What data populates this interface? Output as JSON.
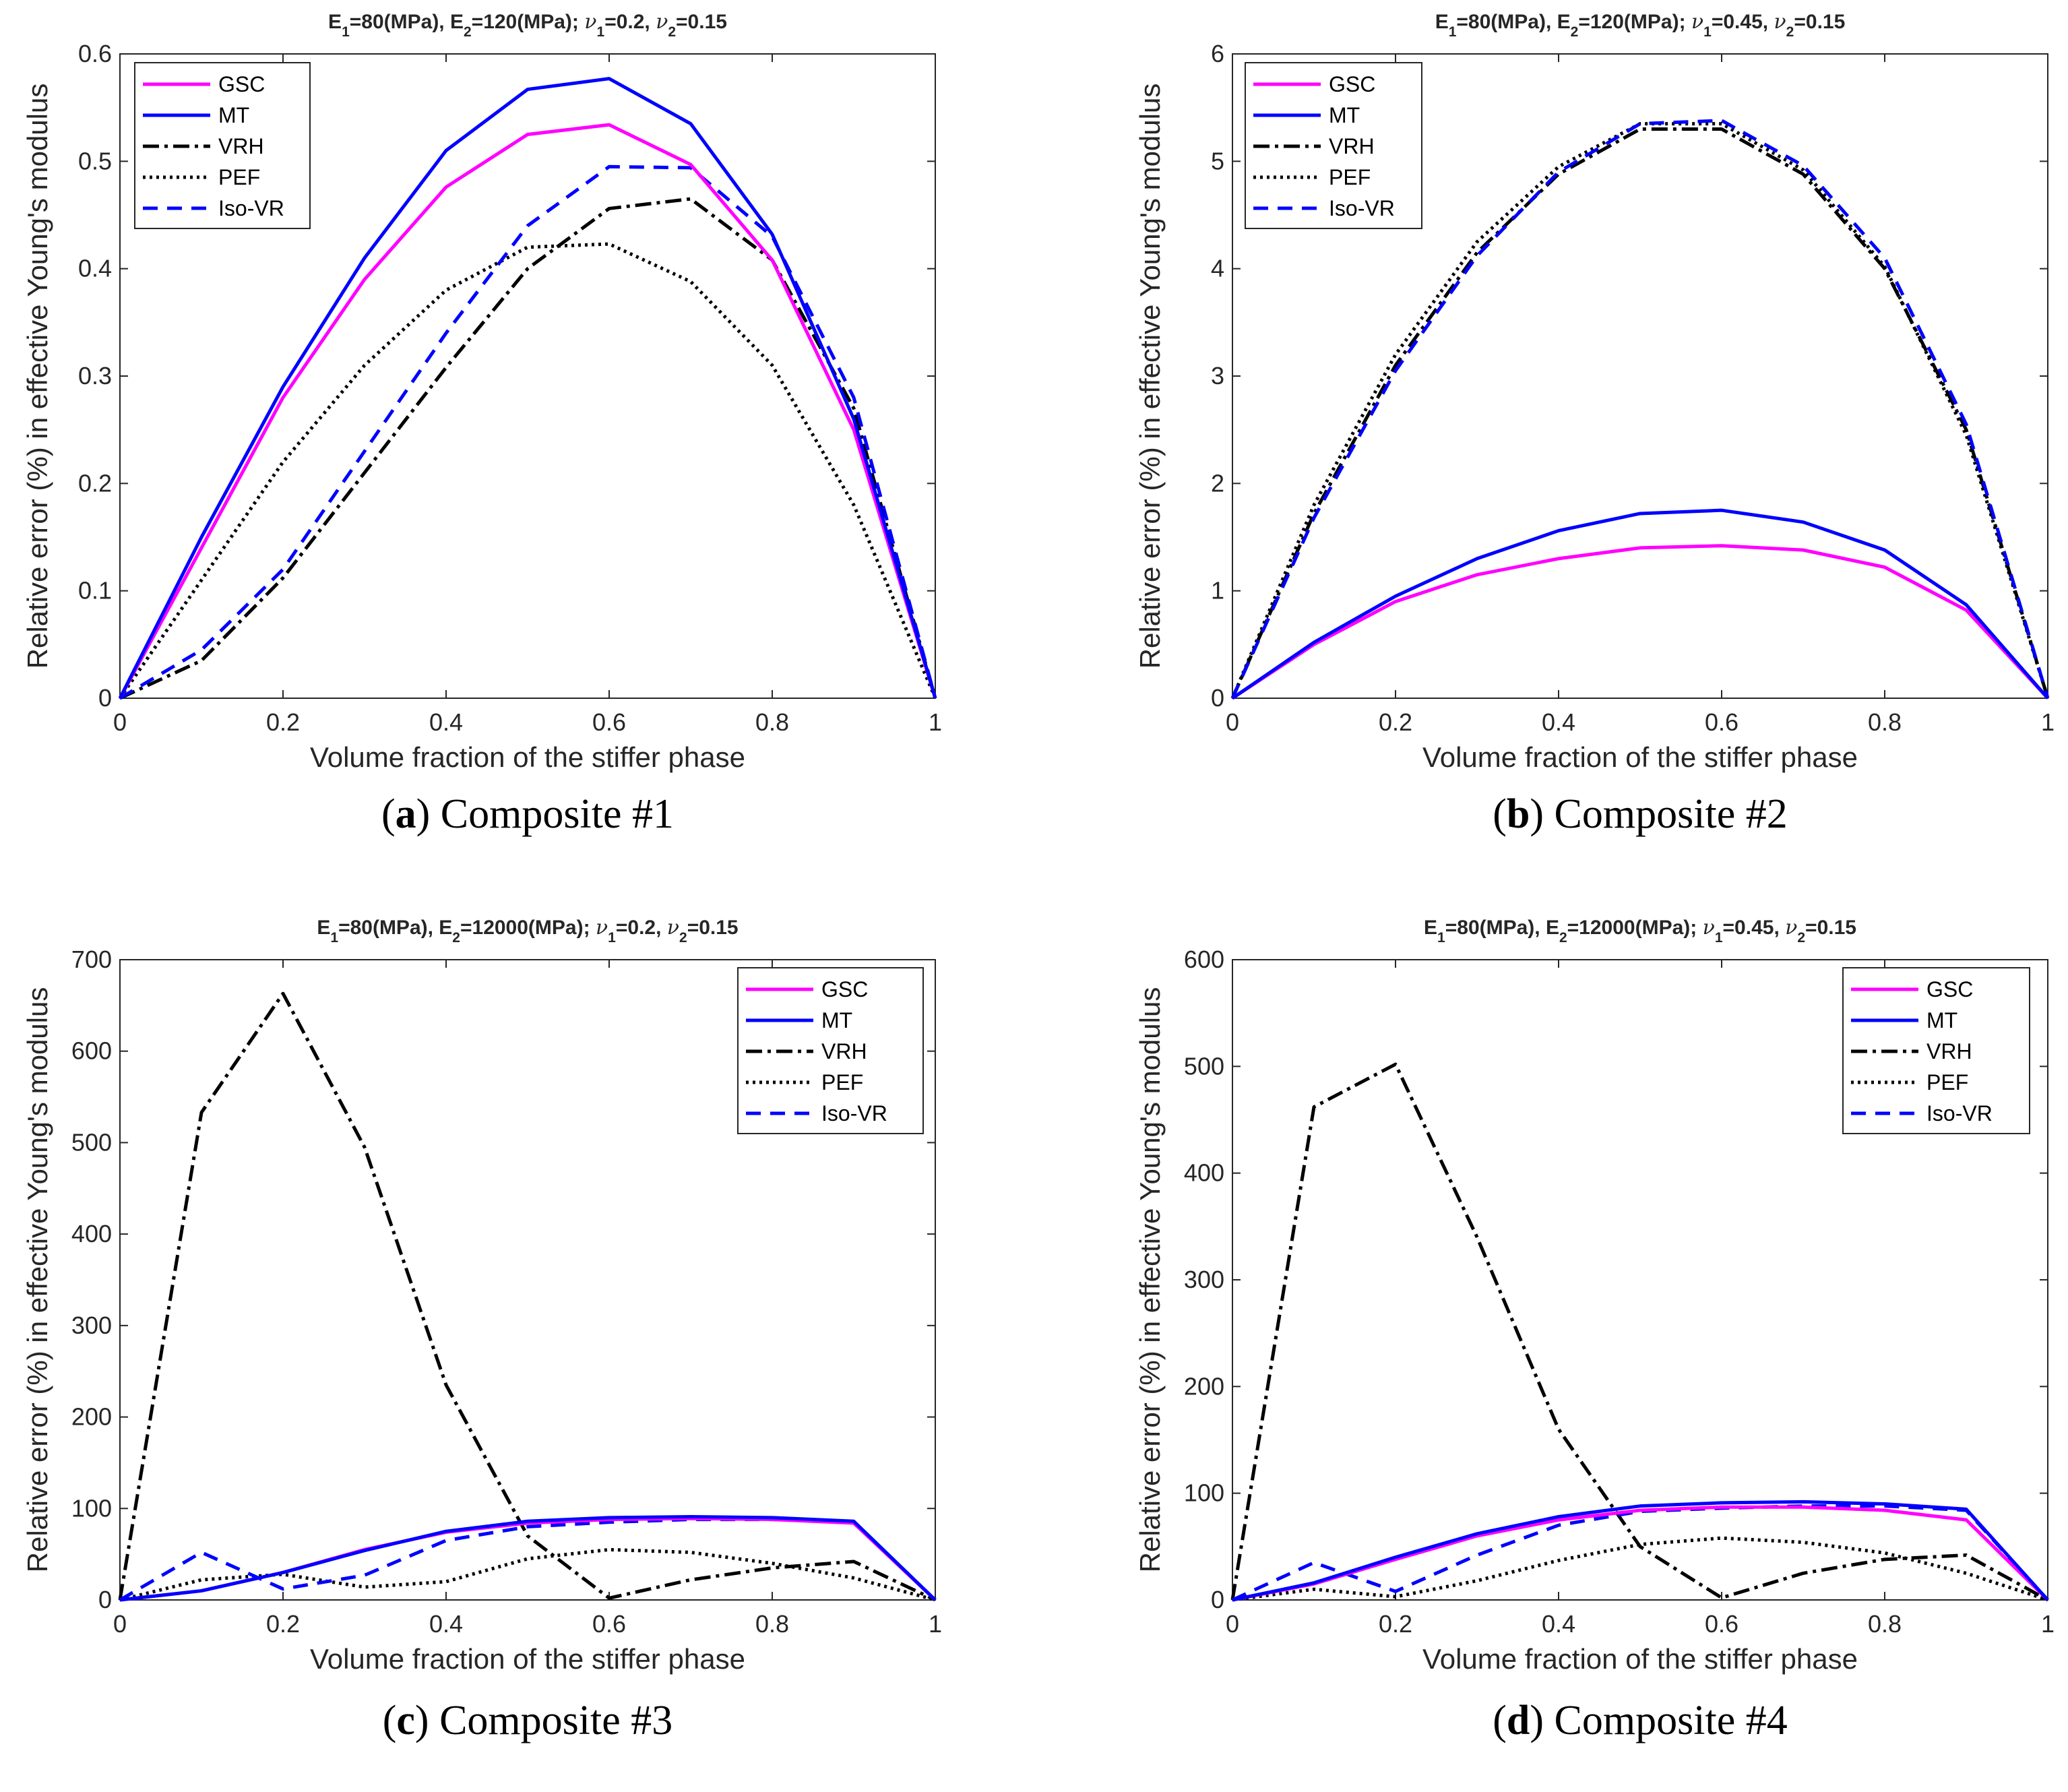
{
  "chart_data": [
    {
      "type": "line",
      "id": "a",
      "title": "E1=80(MPa), E2=120(MPa); ν1=0.2, ν2=0.15",
      "title_parts": {
        "e1_sub": "1",
        "e1_val": "=80(MPa), E",
        "e2_sub": "2",
        "e2_val": "=120(MPa); ",
        "nu1_sub": "1",
        "nu1_val": "=0.2, ",
        "nu2_sub": "2",
        "nu2_val": "=0.15"
      },
      "xlabel": "Volume fraction of the stiffer phase",
      "ylabel": "Relative error (%) in effective Young's modulus",
      "xlim": [
        0,
        1
      ],
      "ylim": [
        0,
        0.6
      ],
      "x": [
        0,
        0.1,
        0.2,
        0.3,
        0.4,
        0.5,
        0.6,
        0.7,
        0.8,
        0.9,
        1
      ],
      "xticks": [
        "0",
        "0.2",
        "0.4",
        "0.6",
        "0.8",
        "1"
      ],
      "xtick_values": [
        0,
        0.2,
        0.4,
        0.6,
        0.8,
        1
      ],
      "yticks": [
        "0",
        "0.1",
        "0.2",
        "0.3",
        "0.4",
        "0.5",
        "0.6"
      ],
      "ytick_values": [
        0,
        0.1,
        0.2,
        0.3,
        0.4,
        0.5,
        0.6
      ],
      "legend_position": "top-left",
      "caption": {
        "letter": "a",
        "text": " Composite #1"
      },
      "series": [
        {
          "name": "GSC",
          "values": [
            0,
            0.14,
            0.28,
            0.39,
            0.476,
            0.525,
            0.534,
            0.497,
            0.408,
            0.25,
            0
          ]
        },
        {
          "name": "MT",
          "values": [
            0,
            0.15,
            0.29,
            0.41,
            0.51,
            0.567,
            0.577,
            0.535,
            0.432,
            0.26,
            0
          ]
        },
        {
          "name": "VRH",
          "values": [
            0,
            0.035,
            0.112,
            0.21,
            0.308,
            0.4,
            0.456,
            0.465,
            0.408,
            0.27,
            0
          ]
        },
        {
          "name": "PEF",
          "values": [
            0,
            0.11,
            0.22,
            0.31,
            0.38,
            0.42,
            0.423,
            0.388,
            0.31,
            0.18,
            0
          ]
        },
        {
          "name": "Iso-VR",
          "values": [
            0,
            0.045,
            0.12,
            0.23,
            0.34,
            0.44,
            0.495,
            0.494,
            0.43,
            0.28,
            0
          ]
        }
      ]
    },
    {
      "type": "line",
      "id": "b",
      "title": "E1=80(MPa), E2=120(MPa); ν1=0.45, ν2=0.15",
      "title_parts": {
        "e1_sub": "1",
        "e1_val": "=80(MPa), E",
        "e2_sub": "2",
        "e2_val": "=120(MPa); ",
        "nu1_sub": "1",
        "nu1_val": "=0.45, ",
        "nu2_sub": "2",
        "nu2_val": "=0.15"
      },
      "xlabel": "Volume fraction of the stiffer phase",
      "ylabel": "Relative error (%) in effective Young's modulus",
      "xlim": [
        0,
        1
      ],
      "ylim": [
        0,
        6
      ],
      "x": [
        0,
        0.1,
        0.2,
        0.3,
        0.4,
        0.5,
        0.6,
        0.7,
        0.8,
        0.9,
        1
      ],
      "xticks": [
        "0",
        "0.2",
        "0.4",
        "0.6",
        "0.8",
        "1"
      ],
      "xtick_values": [
        0,
        0.2,
        0.4,
        0.6,
        0.8,
        1
      ],
      "yticks": [
        "0",
        "1",
        "2",
        "3",
        "4",
        "5",
        "6"
      ],
      "ytick_values": [
        0,
        1,
        2,
        3,
        4,
        5,
        6
      ],
      "legend_position": "top-left",
      "caption": {
        "letter": "b",
        "text": " Composite #2"
      },
      "series": [
        {
          "name": "GSC",
          "values": [
            0,
            0.5,
            0.9,
            1.15,
            1.3,
            1.4,
            1.42,
            1.38,
            1.22,
            0.82,
            0
          ]
        },
        {
          "name": "MT",
          "values": [
            0,
            0.52,
            0.95,
            1.3,
            1.56,
            1.72,
            1.75,
            1.64,
            1.38,
            0.87,
            0
          ]
        },
        {
          "name": "VRH",
          "values": [
            0,
            1.72,
            3.1,
            4.15,
            4.88,
            5.3,
            5.3,
            4.88,
            4.0,
            2.5,
            0
          ]
        },
        {
          "name": "PEF",
          "values": [
            0,
            1.8,
            3.2,
            4.25,
            4.95,
            5.35,
            5.35,
            4.92,
            4.02,
            2.45,
            0
          ]
        },
        {
          "name": "Iso-VR",
          "values": [
            0,
            1.68,
            3.05,
            4.12,
            4.9,
            5.35,
            5.38,
            4.96,
            4.1,
            2.55,
            0
          ]
        }
      ]
    },
    {
      "type": "line",
      "id": "c",
      "title": "E1=80(MPa), E2=12000(MPa); ν1=0.2, ν2=0.15",
      "title_parts": {
        "e1_sub": "1",
        "e1_val": "=80(MPa), E",
        "e2_sub": "2",
        "e2_val": "=12000(MPa); ",
        "nu1_sub": "1",
        "nu1_val": "=0.2, ",
        "nu2_sub": "2",
        "nu2_val": "=0.15"
      },
      "xlabel": "Volume fraction of the stiffer phase",
      "ylabel": "Relative error (%) in effective Young's modulus",
      "xlim": [
        0,
        1
      ],
      "ylim": [
        0,
        700
      ],
      "x": [
        0,
        0.1,
        0.2,
        0.3,
        0.4,
        0.5,
        0.6,
        0.7,
        0.8,
        0.9,
        1
      ],
      "xticks": [
        "0",
        "0.2",
        "0.4",
        "0.6",
        "0.8",
        "1"
      ],
      "xtick_values": [
        0,
        0.2,
        0.4,
        0.6,
        0.8,
        1
      ],
      "yticks": [
        "0",
        "100",
        "200",
        "300",
        "400",
        "500",
        "600",
        "700"
      ],
      "ytick_values": [
        0,
        100,
        200,
        300,
        400,
        500,
        600,
        700
      ],
      "legend_position": "top-right",
      "caption": {
        "letter": "c",
        "text": " Composite #3"
      },
      "series": [
        {
          "name": "GSC",
          "values": [
            0,
            10,
            30,
            55,
            74,
            84,
            88,
            89,
            88,
            84,
            0
          ]
        },
        {
          "name": "MT",
          "values": [
            0,
            10,
            30,
            54,
            75,
            86,
            90,
            91,
            90,
            86,
            0
          ]
        },
        {
          "name": "VRH",
          "values": [
            0,
            533,
            663,
            495,
            235,
            70,
            2,
            22,
            35,
            42,
            0
          ]
        },
        {
          "name": "PEF",
          "values": [
            0,
            22,
            28,
            14,
            20,
            45,
            55,
            52,
            40,
            24,
            0
          ]
        },
        {
          "name": "Iso-VR",
          "values": [
            0,
            52,
            12,
            27,
            65,
            80,
            85,
            88,
            88,
            85,
            0
          ]
        }
      ]
    },
    {
      "type": "line",
      "id": "d",
      "title": "E1=80(MPa), E2=12000(MPa); ν1=0.45, ν2=0.15",
      "title_parts": {
        "e1_sub": "1",
        "e1_val": "=80(MPa), E",
        "e2_sub": "2",
        "e2_val": "=12000(MPa); ",
        "nu1_sub": "1",
        "nu1_val": "=0.45, ",
        "nu2_sub": "2",
        "nu2_val": "=0.15"
      },
      "xlabel": "Volume fraction of the stiffer phase",
      "ylabel": "Relative error (%) in effective Young's modulus",
      "xlim": [
        0,
        1
      ],
      "ylim": [
        0,
        600
      ],
      "x": [
        0,
        0.1,
        0.2,
        0.3,
        0.4,
        0.5,
        0.6,
        0.7,
        0.8,
        0.9,
        1
      ],
      "xticks": [
        "0",
        "0.2",
        "0.4",
        "0.6",
        "0.8",
        "1"
      ],
      "xtick_values": [
        0,
        0.2,
        0.4,
        0.6,
        0.8,
        1
      ],
      "yticks": [
        "0",
        "100",
        "200",
        "300",
        "400",
        "500",
        "600"
      ],
      "ytick_values": [
        0,
        100,
        200,
        300,
        400,
        500,
        600
      ],
      "legend_position": "top-right",
      "caption": {
        "letter": "d",
        "text": " Composite #4"
      },
      "series": [
        {
          "name": "GSC",
          "values": [
            0,
            15,
            38,
            60,
            75,
            84,
            87,
            87,
            84,
            75,
            0
          ]
        },
        {
          "name": "MT",
          "values": [
            0,
            16,
            40,
            62,
            78,
            88,
            91,
            92,
            90,
            85,
            0
          ]
        },
        {
          "name": "VRH",
          "values": [
            0,
            462,
            502,
            340,
            160,
            50,
            2,
            25,
            38,
            42,
            0
          ]
        },
        {
          "name": "PEF",
          "values": [
            0,
            10,
            3,
            18,
            37,
            52,
            58,
            54,
            44,
            25,
            0
          ]
        },
        {
          "name": "Iso-VR",
          "values": [
            0,
            35,
            8,
            42,
            70,
            83,
            86,
            88,
            88,
            84,
            0
          ]
        }
      ]
    }
  ],
  "styles": {
    "GSC": {
      "color": "#ff00ff",
      "dash": "none"
    },
    "MT": {
      "color": "#0000ff",
      "dash": "none"
    },
    "VRH": {
      "color": "#000000",
      "dash": "24,8,5,8"
    },
    "PEF": {
      "color": "#000000",
      "dash": "4,6"
    },
    "Iso-VR": {
      "color": "#0000ff",
      "dash": "22,14"
    }
  }
}
